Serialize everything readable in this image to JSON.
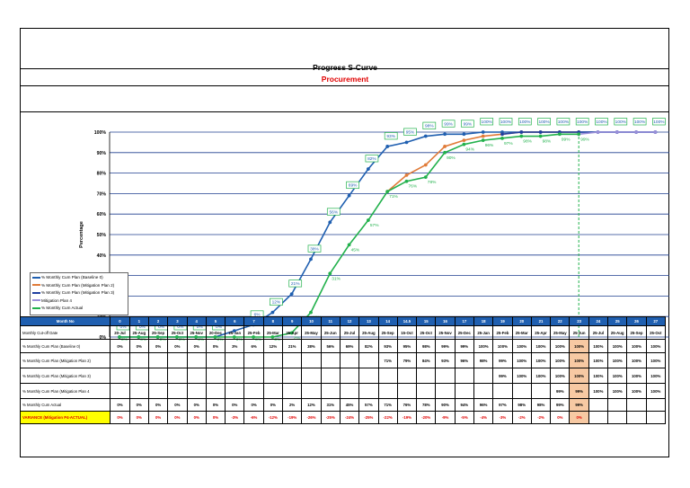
{
  "title": "Progress S-Curve",
  "subtitle": "Procurement",
  "chart_data": {
    "type": "line",
    "ylabel": "Percentage",
    "ylim": [
      0,
      100
    ],
    "yticks": [
      "0%",
      "10%",
      "20%",
      "30%",
      "40%",
      "50%",
      "60%",
      "70%",
      "80%",
      "90%",
      "100%"
    ],
    "grid": true,
    "legend_position": "left",
    "x": [
      "0",
      "1",
      "2",
      "3",
      "4",
      "5",
      "6",
      "7",
      "8",
      "9",
      "10",
      "11",
      "12",
      "13",
      "14",
      "14.5",
      "15",
      "16",
      "17",
      "18",
      "19",
      "20",
      "21",
      "22",
      "23",
      "24",
      "25",
      "26",
      "27"
    ],
    "series": [
      {
        "name": "% Monthly Cum Plan (Baseline 0)",
        "color": "#1f5fb0",
        "values": [
          0,
          0,
          0,
          0,
          0,
          0,
          3,
          6,
          12,
          21,
          38,
          56,
          69,
          82,
          93,
          95,
          98,
          99,
          99,
          100,
          100,
          100,
          100,
          100,
          100,
          100,
          100,
          100,
          100
        ]
      },
      {
        "name": "% Monthly Cum Plan (Mitigation Plan 2)",
        "color": "#e07b39",
        "values": [
          null,
          null,
          null,
          null,
          null,
          null,
          null,
          null,
          null,
          null,
          null,
          null,
          null,
          null,
          71,
          79,
          84,
          93,
          96,
          98,
          99,
          100,
          100,
          100,
          100,
          null,
          null,
          null,
          null
        ]
      },
      {
        "name": "% Monthly Cum Plan (Mitigation Plan 3)",
        "color": "#1f3fa0",
        "values": [
          null,
          null,
          null,
          null,
          null,
          null,
          null,
          null,
          null,
          null,
          null,
          null,
          null,
          null,
          null,
          null,
          null,
          null,
          null,
          null,
          99,
          100,
          100,
          100,
          100,
          100,
          100,
          100,
          100
        ]
      },
      {
        "name": "Mitigation Plan 4",
        "color": "#9b8fd9",
        "values": [
          null,
          null,
          null,
          null,
          null,
          null,
          null,
          null,
          null,
          null,
          null,
          null,
          null,
          null,
          null,
          null,
          null,
          null,
          null,
          null,
          null,
          null,
          null,
          99,
          99,
          100,
          100,
          100,
          100
        ]
      },
      {
        "name": "% Monthly Cum Actual",
        "color": "#22b14c",
        "values": [
          0,
          0,
          0,
          0,
          0,
          0,
          0,
          0,
          0,
          2,
          12,
          31,
          45,
          57,
          71,
          76,
          78,
          90,
          94,
          96,
          97,
          98,
          98,
          99,
          99,
          null,
          null,
          null,
          null
        ]
      }
    ],
    "data_labels_plan": [
      "0%",
      "0%",
      "0%",
      "0%",
      "0%",
      "0%",
      "3%",
      "6%",
      "12%",
      "21%",
      "38%",
      "56%",
      "69%",
      "82%",
      "93%",
      "95%",
      "98%",
      "99%",
      "99%",
      "100%",
      "100%",
      "100%",
      "100%",
      "100%",
      "100%",
      "100%",
      "100%",
      "100%",
      "100%"
    ],
    "data_labels_actual": [
      "0%",
      "0%",
      "0%",
      "0%",
      "0%",
      "0%",
      "0%",
      "0%",
      "0%",
      "2%",
      "12%",
      "31%",
      "45%",
      "57%",
      "71%",
      "76%",
      "78%",
      "90%",
      "94%",
      "96%",
      "97%",
      "98%",
      "98%",
      "99%",
      "99%"
    ],
    "cutoff_marker": "23"
  },
  "table": {
    "header_label": "Month No",
    "month_nos": [
      "0",
      "1",
      "2",
      "3",
      "4",
      "5",
      "6",
      "7",
      "8",
      "9",
      "10",
      "11",
      "12",
      "13",
      "14",
      "14.5",
      "15",
      "16",
      "17",
      "18",
      "19",
      "20",
      "21",
      "22",
      "23",
      "24",
      "25",
      "26",
      "27"
    ],
    "rows": [
      {
        "label": "Monthly Cut-off Date",
        "cells": [
          "20-Jul",
          "25-Aug",
          "25-Sep",
          "25-Oct",
          "25-Nov",
          "20-Dec",
          "25-Jan",
          "25-Feb",
          "25-Mar",
          "25-Apr",
          "25-May",
          "25-Jun",
          "25-Jul",
          "25-Aug",
          "25-Sep",
          "15-Oct",
          "25-Oct",
          "25-Nov",
          "25-Dec",
          "25-Jan",
          "25-Feb",
          "25-Mar",
          "25-Apr",
          "25-May",
          "25-Jun",
          "25-Jul",
          "25-Aug",
          "25-Sep",
          "25-Oct"
        ]
      },
      {
        "label": "% Monthly Cum Plan (Baseline 0)",
        "cells": [
          "0%",
          "0%",
          "0%",
          "0%",
          "0%",
          "0%",
          "3%",
          "6%",
          "12%",
          "21%",
          "38%",
          "56%",
          "69%",
          "82%",
          "93%",
          "95%",
          "98%",
          "99%",
          "99%",
          "100%",
          "100%",
          "100%",
          "100%",
          "100%",
          "100%",
          "100%",
          "100%",
          "100%",
          "100%"
        ]
      },
      {
        "label": "% Monthly Cum Plan (Mitigation Plan 2)",
        "cells": [
          "",
          "",
          "",
          "",
          "",
          "",
          "",
          "",
          "",
          "",
          "",
          "",
          "",
          "",
          "71%",
          "79%",
          "84%",
          "93%",
          "96%",
          "98%",
          "99%",
          "100%",
          "100%",
          "100%",
          "100%",
          "100%",
          "100%",
          "100%",
          "100%"
        ]
      },
      {
        "label": "% Monthly Cum Plan (Mitigation Plan 3)",
        "cells": [
          "",
          "",
          "",
          "",
          "",
          "",
          "",
          "",
          "",
          "",
          "",
          "",
          "",
          "",
          "",
          "",
          "",
          "",
          "",
          "",
          "99%",
          "100%",
          "100%",
          "100%",
          "100%",
          "100%",
          "100%",
          "100%",
          "100%"
        ]
      },
      {
        "label": "% Monthly Cum Plan (Mitigation Plan 4",
        "cells": [
          "",
          "",
          "",
          "",
          "",
          "",
          "",
          "",
          "",
          "",
          "",
          "",
          "",
          "",
          "",
          "",
          "",
          "",
          "",
          "",
          "",
          "",
          "",
          "99%",
          "99%",
          "100%",
          "100%",
          "100%",
          "100%"
        ]
      },
      {
        "label": "% Monthly Cum Actual",
        "cells": [
          "0%",
          "0%",
          "0%",
          "0%",
          "0%",
          "0%",
          "0%",
          "0%",
          "0%",
          "2%",
          "12%",
          "31%",
          "45%",
          "57%",
          "71%",
          "76%",
          "78%",
          "90%",
          "94%",
          "96%",
          "97%",
          "98%",
          "98%",
          "99%",
          "99%",
          "",
          "",
          "",
          ""
        ]
      },
      {
        "label": "VARIANCE (Mitigation P4-ACTUAL)",
        "cells": [
          "0%",
          "0%",
          "0%",
          "0%",
          "0%",
          "0%",
          "-3%",
          "-6%",
          "-12%",
          "-19%",
          "-26%",
          "-25%",
          "-24%",
          "-25%",
          "-22%",
          "-19%",
          "-20%",
          "-9%",
          "-5%",
          "-4%",
          "-3%",
          "-2%",
          "-2%",
          "0%",
          "0%",
          "",
          "",
          "",
          ""
        ]
      }
    ]
  }
}
